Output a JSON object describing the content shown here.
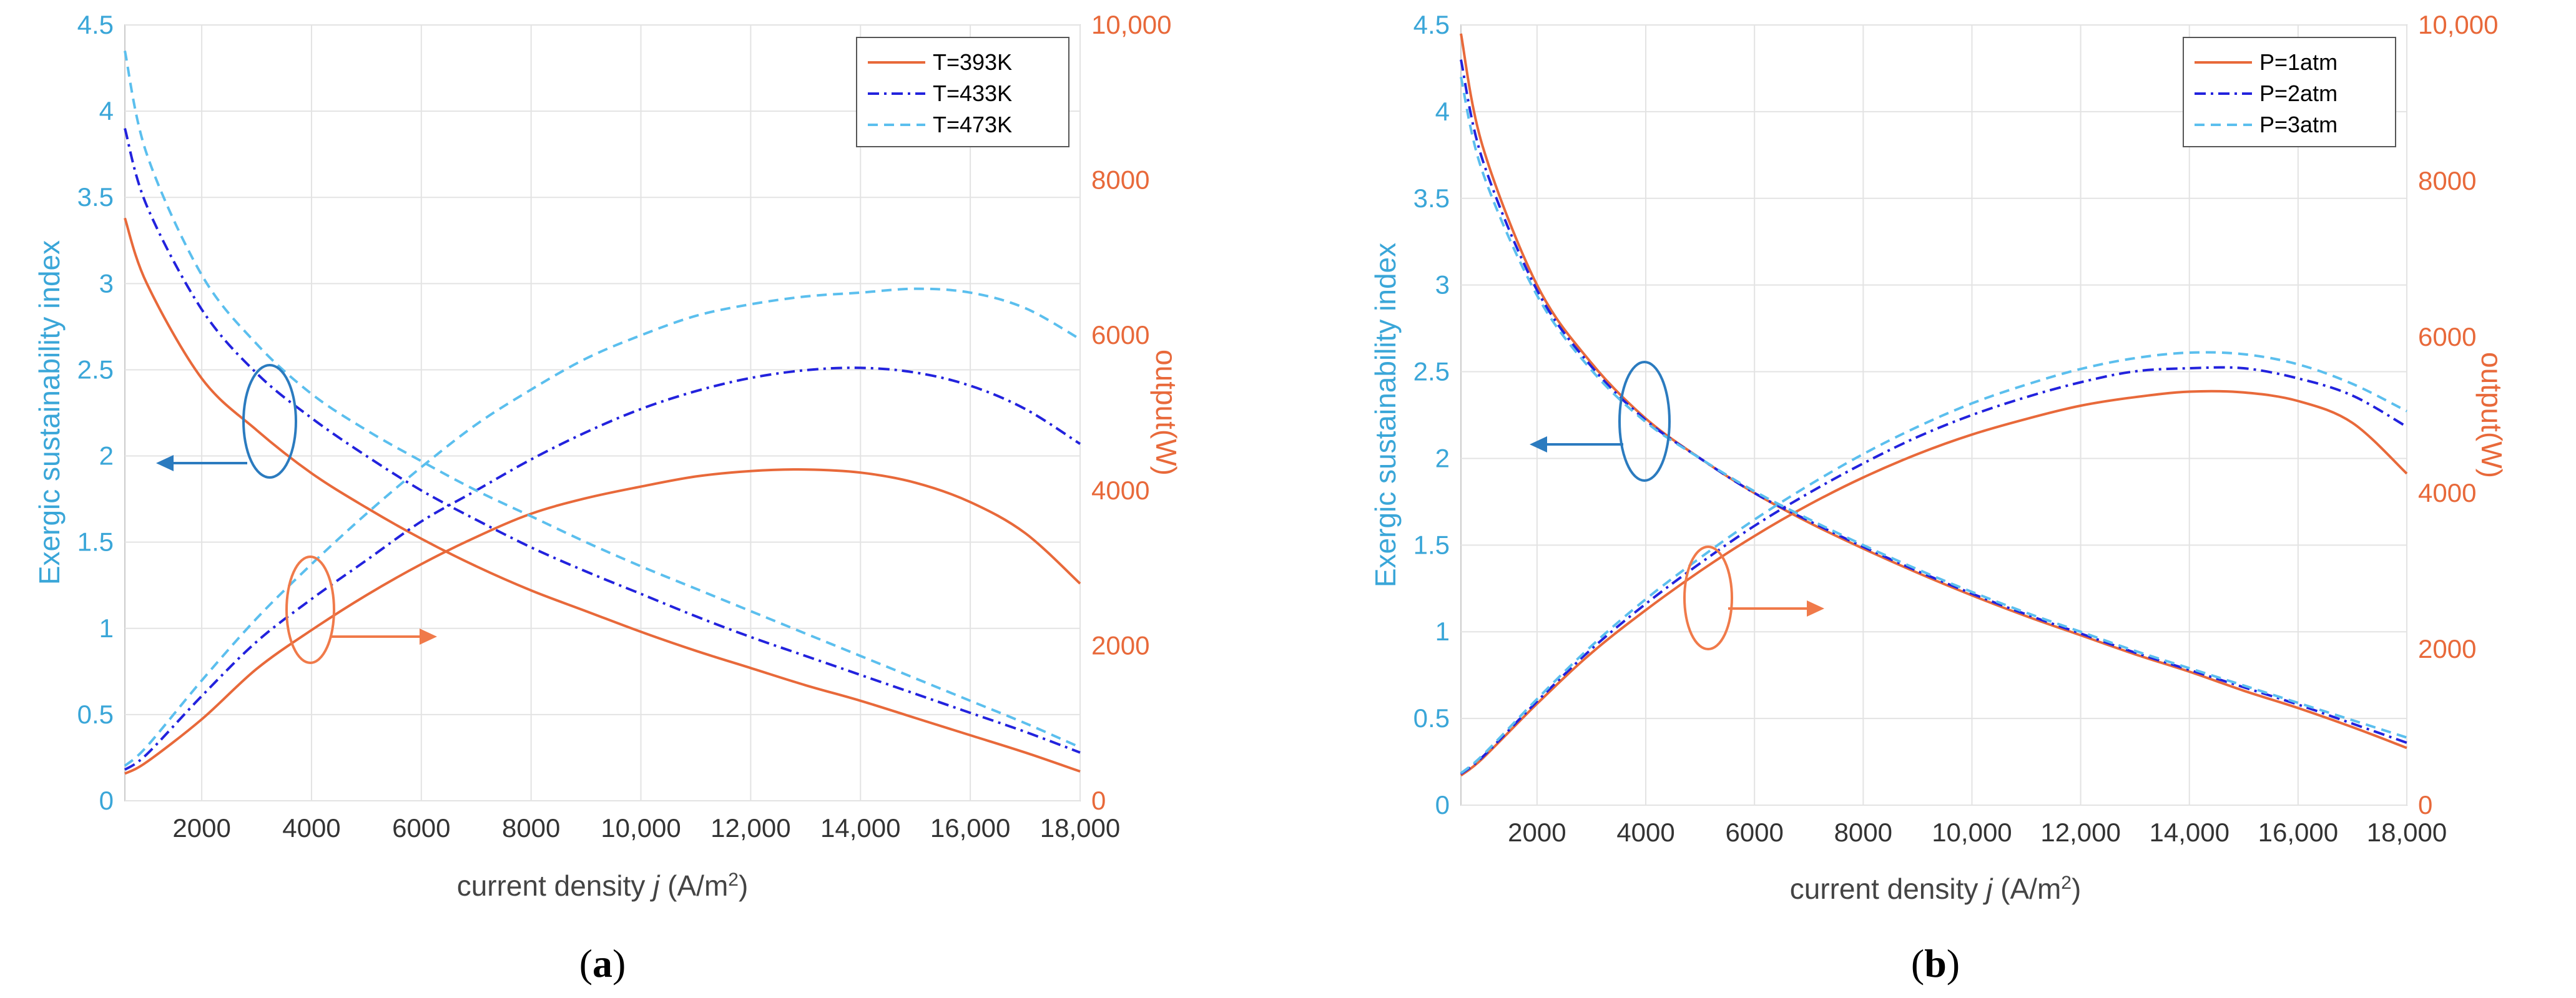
{
  "colors": {
    "left_axis": "#3aa6d8",
    "right_axis": "#e8693a",
    "series_1": "#e8693a",
    "series_2": "#2222dd",
    "series_3": "#5bbfee",
    "grid": "#e3e3e3"
  },
  "chart_data": [
    {
      "type": "line",
      "panel_label": "(a)",
      "panel_letter": "a",
      "xlabel_prefix": "current density ",
      "xlabel_var": "j",
      "xlabel_unit": " (A/m",
      "xlabel_sup": "2",
      "xlabel_close": ")",
      "ylabel_left": "Exergic sustainability index",
      "ylabel_right": "output(W)",
      "xlim": [
        600,
        18000
      ],
      "ylim_left": [
        0,
        4.5
      ],
      "ylim_right": [
        0,
        10000
      ],
      "x_ticks": [
        "2000",
        "4000",
        "6000",
        "8000",
        "10,000",
        "12,000",
        "14,000",
        "16,000",
        "18,000"
      ],
      "x_tick_values": [
        2000,
        4000,
        6000,
        8000,
        10000,
        12000,
        14000,
        16000,
        18000
      ],
      "y_left_ticks": [
        "0",
        "0.5",
        "1",
        "1.5",
        "2",
        "2.5",
        "3",
        "3.5",
        "4",
        "4.5"
      ],
      "y_left_tick_values": [
        0,
        0.5,
        1,
        1.5,
        2,
        2.5,
        3,
        3.5,
        4,
        4.5
      ],
      "y_right_ticks": [
        "0",
        "2000",
        "4000",
        "6000",
        "8000",
        "10,000"
      ],
      "y_right_tick_values": [
        0,
        2000,
        4000,
        6000,
        8000,
        10000
      ],
      "legend": [
        "T=393K",
        "T=433K",
        "T=473K"
      ],
      "legend_position": "top-right",
      "x": [
        600,
        1000,
        2000,
        3000,
        4000,
        5000,
        6000,
        7000,
        8000,
        9000,
        10000,
        11000,
        12000,
        13000,
        14000,
        15000,
        16000,
        17000,
        18000
      ],
      "series": [
        {
          "name": "T=393K",
          "style": "solid",
          "color": "#e8693a",
          "esi": [
            3.38,
            3.0,
            2.45,
            2.15,
            1.9,
            1.7,
            1.52,
            1.36,
            1.22,
            1.1,
            0.98,
            0.87,
            0.77,
            0.67,
            0.58,
            0.48,
            0.38,
            0.28,
            0.17
          ],
          "output": [
            350,
            500,
            1050,
            1700,
            2200,
            2650,
            3050,
            3400,
            3700,
            3900,
            4050,
            4180,
            4250,
            4270,
            4230,
            4100,
            3850,
            3450,
            2800
          ]
        },
        {
          "name": "T=433K",
          "style": "dashdot",
          "color": "#2222dd",
          "esi": [
            3.9,
            3.45,
            2.85,
            2.48,
            2.22,
            2.0,
            1.8,
            1.63,
            1.47,
            1.33,
            1.2,
            1.07,
            0.95,
            0.84,
            0.73,
            0.62,
            0.51,
            0.4,
            0.28
          ],
          "output": [
            400,
            600,
            1350,
            2050,
            2600,
            3100,
            3600,
            4000,
            4400,
            4750,
            5050,
            5280,
            5450,
            5550,
            5580,
            5520,
            5350,
            5050,
            4600
          ]
        },
        {
          "name": "T=473K",
          "style": "dashed",
          "color": "#5bbfee",
          "esi": [
            4.35,
            3.75,
            3.05,
            2.65,
            2.36,
            2.15,
            1.97,
            1.8,
            1.65,
            1.5,
            1.36,
            1.23,
            1.1,
            0.97,
            0.84,
            0.71,
            0.58,
            0.45,
            0.31
          ],
          "output": [
            450,
            700,
            1550,
            2350,
            3050,
            3700,
            4300,
            4850,
            5300,
            5700,
            6000,
            6250,
            6400,
            6500,
            6550,
            6600,
            6550,
            6350,
            5950
          ]
        }
      ],
      "annotations": [
        "ellipse+arrow pointing to left axis (ESI curves)",
        "ellipse+arrow pointing to right axis (output curves)"
      ]
    },
    {
      "type": "line",
      "panel_label": "(b)",
      "panel_letter": "b",
      "xlabel_prefix": "current density ",
      "xlabel_var": "j",
      "xlabel_unit": " (A/m",
      "xlabel_sup": "2",
      "xlabel_close": ")",
      "ylabel_left": "Exergic sustainability index",
      "ylabel_right": "output(W)",
      "xlim": [
        600,
        18000
      ],
      "ylim_left": [
        0,
        4.5
      ],
      "ylim_right": [
        0,
        10000
      ],
      "x_ticks": [
        "2000",
        "4000",
        "6000",
        "8000",
        "10,000",
        "12,000",
        "14,000",
        "16,000",
        "18,000"
      ],
      "x_tick_values": [
        2000,
        4000,
        6000,
        8000,
        10000,
        12000,
        14000,
        16000,
        18000
      ],
      "y_left_ticks": [
        "0",
        "0.5",
        "1",
        "1.5",
        "2",
        "2.5",
        "3",
        "3.5",
        "4",
        "4.5"
      ],
      "y_left_tick_values": [
        0,
        0.5,
        1,
        1.5,
        2,
        2.5,
        3,
        3.5,
        4,
        4.5
      ],
      "y_right_ticks": [
        "0",
        "2000",
        "4000",
        "6000",
        "8000",
        "10,000"
      ],
      "y_right_tick_values": [
        0,
        2000,
        4000,
        6000,
        8000,
        10000
      ],
      "legend": [
        "P=1atm",
        "P=2atm",
        "P=3atm"
      ],
      "legend_position": "top-right",
      "x": [
        600,
        1000,
        2000,
        3000,
        4000,
        5000,
        6000,
        7000,
        8000,
        9000,
        10000,
        11000,
        12000,
        13000,
        14000,
        15000,
        16000,
        17000,
        18000
      ],
      "series": [
        {
          "name": "P=1atm",
          "style": "solid",
          "color": "#e8693a",
          "esi": [
            4.45,
            3.8,
            3.0,
            2.55,
            2.23,
            2.0,
            1.8,
            1.63,
            1.48,
            1.34,
            1.21,
            1.09,
            0.98,
            0.87,
            0.77,
            0.66,
            0.56,
            0.45,
            0.33
          ],
          "output": [
            380,
            600,
            1300,
            1950,
            2500,
            3000,
            3450,
            3850,
            4200,
            4500,
            4750,
            4950,
            5120,
            5230,
            5300,
            5290,
            5180,
            4900,
            4250
          ]
        },
        {
          "name": "P=2atm",
          "style": "dashdot",
          "color": "#2222dd",
          "esi": [
            4.3,
            3.72,
            2.97,
            2.53,
            2.22,
            2.0,
            1.8,
            1.64,
            1.49,
            1.35,
            1.22,
            1.1,
            0.99,
            0.88,
            0.78,
            0.68,
            0.58,
            0.47,
            0.36
          ],
          "output": [
            400,
            620,
            1330,
            2000,
            2580,
            3100,
            3580,
            4000,
            4380,
            4720,
            5000,
            5230,
            5420,
            5560,
            5600,
            5600,
            5470,
            5250,
            4850
          ]
        },
        {
          "name": "P=3atm",
          "style": "dashed",
          "color": "#5bbfee",
          "esi": [
            4.2,
            3.65,
            2.94,
            2.51,
            2.21,
            2.0,
            1.81,
            1.65,
            1.5,
            1.36,
            1.23,
            1.11,
            1.0,
            0.89,
            0.79,
            0.69,
            0.59,
            0.49,
            0.39
          ],
          "output": [
            410,
            640,
            1360,
            2040,
            2640,
            3170,
            3660,
            4100,
            4500,
            4850,
            5150,
            5390,
            5590,
            5730,
            5800,
            5780,
            5650,
            5400,
            5050
          ]
        }
      ],
      "annotations": [
        "ellipse+arrow pointing to left axis (ESI curves)",
        "ellipse+arrow pointing to right axis (output curves)"
      ]
    }
  ]
}
